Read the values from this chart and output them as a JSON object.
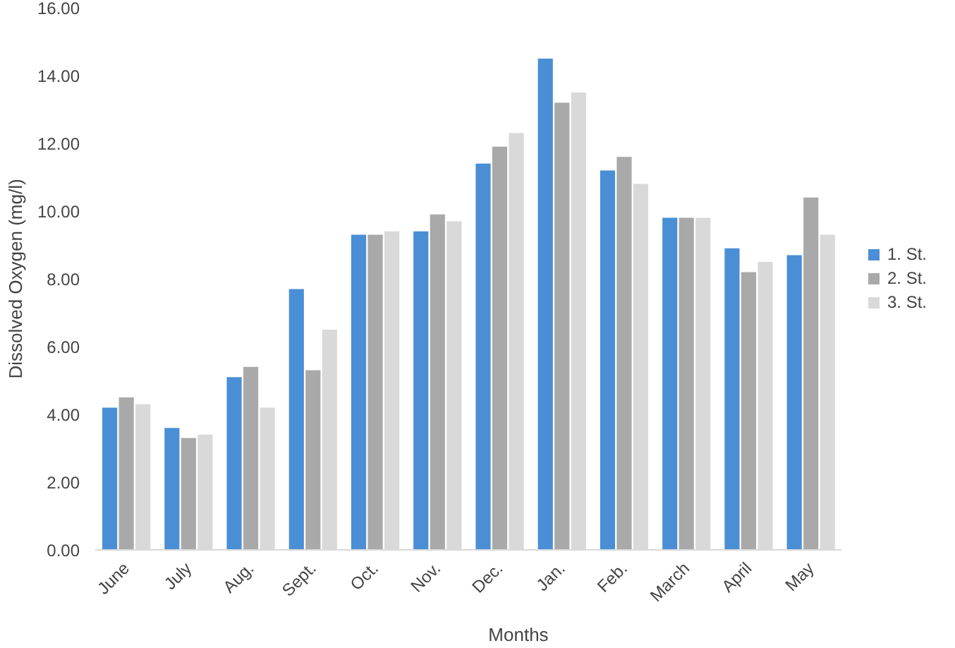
{
  "chart_data": {
    "type": "bar",
    "xlabel": "Months",
    "ylabel": "Dissolved Oxygen (mg/l)",
    "categories": [
      "June",
      "July",
      "Aug.",
      "Sept.",
      "Oct.",
      "Nov.",
      "Dec.",
      "Jan.",
      "Feb.",
      "March",
      "April",
      "May"
    ],
    "series": [
      {
        "name": "1. St.",
        "color": "#4a8fd6",
        "values": [
          4.2,
          3.6,
          5.1,
          7.7,
          9.3,
          9.4,
          11.4,
          14.5,
          11.2,
          9.8,
          8.9,
          8.7
        ]
      },
      {
        "name": "2. St.",
        "color": "#a9a9a9",
        "values": [
          4.5,
          3.3,
          5.4,
          5.3,
          9.3,
          9.9,
          11.9,
          13.2,
          11.6,
          9.8,
          8.2,
          10.4
        ]
      },
      {
        "name": "3. St.",
        "color": "#d9d9d9",
        "values": [
          4.3,
          3.4,
          4.2,
          6.5,
          9.4,
          9.7,
          12.3,
          13.5,
          10.8,
          9.8,
          8.5,
          9.3
        ]
      }
    ],
    "ylim": [
      0,
      16
    ],
    "yticks": [
      {
        "value": 0,
        "label": "0.00"
      },
      {
        "value": 2,
        "label": "2.00"
      },
      {
        "value": 4,
        "label": "4.00"
      },
      {
        "value": 6,
        "label": "6.00"
      },
      {
        "value": 8,
        "label": "8.00"
      },
      {
        "value": 10,
        "label": "10.00"
      },
      {
        "value": 12,
        "label": "12.00"
      },
      {
        "value": 14,
        "label": "14.00"
      },
      {
        "value": 16,
        "label": "16.00"
      }
    ],
    "grid": false,
    "legend": "right"
  }
}
